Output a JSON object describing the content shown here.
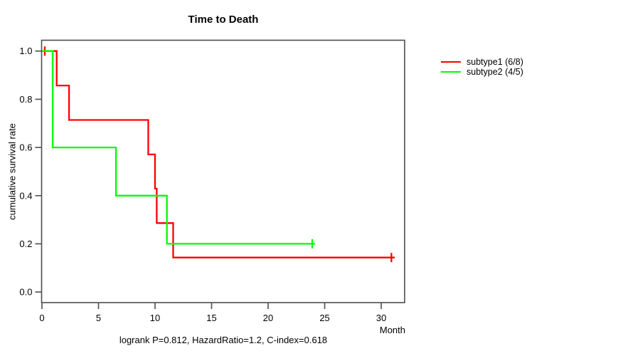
{
  "chart_data": {
    "type": "line",
    "subtype": "kaplan-meier-step-curves",
    "title": "Time to Death",
    "xlabel": "Month",
    "ylabel": "cumulative survival rate",
    "footer": "logrank P=0.812, HazardRatio=1.2, C-index=0.618",
    "xticks": [
      "0",
      "5",
      "10",
      "15",
      "20",
      "25",
      "30"
    ],
    "yticks": [
      "0.0",
      "0.2",
      "0.4",
      "0.6",
      "0.8",
      "1.0"
    ],
    "xlim": [
      -0.03,
      32.07
    ],
    "ylim": [
      -0.044,
      1.045
    ],
    "grid": false,
    "legend_position": "right-outside",
    "axis_color": "#4d4d4d",
    "series": [
      {
        "name": "subtype1",
        "legend_label": "subtype1 (6/8)",
        "color": "#ff0000",
        "points": [
          [
            0,
            1.0
          ],
          [
            1.3,
            1.0
          ],
          [
            1.3,
            0.857
          ],
          [
            2.4,
            0.857
          ],
          [
            2.4,
            0.714
          ],
          [
            9.4,
            0.714
          ],
          [
            9.4,
            0.571
          ],
          [
            10.0,
            0.571
          ],
          [
            10.0,
            0.429
          ],
          [
            10.15,
            0.429
          ],
          [
            10.15,
            0.286
          ],
          [
            11.6,
            0.286
          ],
          [
            11.6,
            0.143
          ],
          [
            31.2,
            0.143
          ]
        ],
        "censor_marks": [
          [
            0.25,
            1.0
          ],
          [
            30.9,
            0.143
          ]
        ]
      },
      {
        "name": "subtype2",
        "legend_label": "subtype2 (4/5)",
        "color": "#00ff00",
        "points": [
          [
            0,
            1.0
          ],
          [
            0.95,
            1.0
          ],
          [
            0.95,
            0.6
          ],
          [
            6.55,
            0.6
          ],
          [
            6.55,
            0.4
          ],
          [
            11.05,
            0.4
          ],
          [
            11.05,
            0.2
          ],
          [
            24.15,
            0.2
          ]
        ],
        "censor_marks": [
          [
            23.9,
            0.2
          ]
        ]
      }
    ]
  }
}
